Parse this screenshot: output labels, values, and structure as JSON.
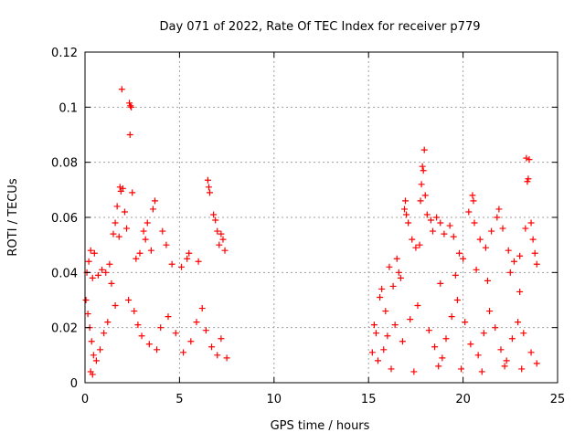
{
  "chart_data": {
    "type": "scatter",
    "title": "Day 071 of 2022, Rate Of TEC Index for receiver p779",
    "xlabel": "GPS time / hours",
    "ylabel": "ROTI / TECUs",
    "xlim": [
      0,
      25
    ],
    "ylim": [
      0,
      0.12
    ],
    "xticks": [
      0,
      5,
      10,
      15,
      20,
      25
    ],
    "xtick_labels": [
      "0",
      "5",
      "10",
      "15",
      "20",
      "25"
    ],
    "yticks": [
      0,
      0.02,
      0.04,
      0.06,
      0.08,
      0.1,
      0.12
    ],
    "ytick_labels": [
      "0",
      "0.02",
      "0.04",
      "0.06",
      "0.08",
      "0.1",
      "0.12"
    ],
    "grid": true,
    "marker": "+",
    "series_color": "#ff0000",
    "series": [
      {
        "name": "ROTI",
        "points": [
          [
            1.95,
            0.1065
          ],
          [
            2.35,
            0.1015
          ],
          [
            2.4,
            0.1005
          ],
          [
            2.45,
            0.1
          ],
          [
            2.38,
            0.09
          ],
          [
            1.85,
            0.071
          ],
          [
            2.0,
            0.0705
          ],
          [
            1.9,
            0.0695
          ],
          [
            2.5,
            0.069
          ],
          [
            1.7,
            0.064
          ],
          [
            2.1,
            0.062
          ],
          [
            1.6,
            0.058
          ],
          [
            2.2,
            0.056
          ],
          [
            1.5,
            0.054
          ],
          [
            1.8,
            0.053
          ],
          [
            3.7,
            0.066
          ],
          [
            3.6,
            0.063
          ],
          [
            3.3,
            0.058
          ],
          [
            3.1,
            0.055
          ],
          [
            3.2,
            0.052
          ],
          [
            4.1,
            0.055
          ],
          [
            4.3,
            0.05
          ],
          [
            3.5,
            0.048
          ],
          [
            2.9,
            0.047
          ],
          [
            2.7,
            0.045
          ],
          [
            6.5,
            0.0735
          ],
          [
            6.55,
            0.071
          ],
          [
            6.6,
            0.069
          ],
          [
            6.8,
            0.061
          ],
          [
            6.9,
            0.059
          ],
          [
            7.0,
            0.055
          ],
          [
            7.2,
            0.054
          ],
          [
            7.3,
            0.052
          ],
          [
            7.1,
            0.05
          ],
          [
            7.4,
            0.048
          ],
          [
            5.5,
            0.047
          ],
          [
            5.4,
            0.045
          ],
          [
            6.0,
            0.044
          ],
          [
            4.6,
            0.043
          ],
          [
            5.1,
            0.042
          ],
          [
            0.3,
            0.048
          ],
          [
            0.5,
            0.047
          ],
          [
            0.2,
            0.044
          ],
          [
            0.1,
            0.04
          ],
          [
            0.4,
            0.038
          ],
          [
            0.7,
            0.039
          ],
          [
            0.9,
            0.041
          ],
          [
            1.1,
            0.04
          ],
          [
            1.3,
            0.043
          ],
          [
            1.4,
            0.036
          ],
          [
            0.05,
            0.03
          ],
          [
            0.15,
            0.025
          ],
          [
            0.25,
            0.02
          ],
          [
            0.35,
            0.015
          ],
          [
            0.45,
            0.01
          ],
          [
            0.6,
            0.008
          ],
          [
            0.8,
            0.012
          ],
          [
            1.0,
            0.018
          ],
          [
            1.2,
            0.022
          ],
          [
            1.6,
            0.028
          ],
          [
            2.3,
            0.03
          ],
          [
            2.6,
            0.026
          ],
          [
            2.8,
            0.021
          ],
          [
            3.0,
            0.017
          ],
          [
            3.4,
            0.014
          ],
          [
            3.8,
            0.012
          ],
          [
            4.0,
            0.02
          ],
          [
            4.4,
            0.024
          ],
          [
            4.8,
            0.018
          ],
          [
            5.2,
            0.011
          ],
          [
            5.6,
            0.015
          ],
          [
            5.9,
            0.022
          ],
          [
            6.2,
            0.027
          ],
          [
            6.4,
            0.019
          ],
          [
            6.7,
            0.013
          ],
          [
            7.0,
            0.01
          ],
          [
            7.2,
            0.016
          ],
          [
            7.5,
            0.009
          ],
          [
            0.3,
            0.004
          ],
          [
            0.4,
            0.003
          ],
          [
            15.3,
            0.021
          ],
          [
            15.4,
            0.018
          ],
          [
            15.6,
            0.031
          ],
          [
            15.9,
            0.026
          ],
          [
            16.1,
            0.042
          ],
          [
            16.3,
            0.035
          ],
          [
            16.5,
            0.045
          ],
          [
            16.6,
            0.04
          ],
          [
            16.9,
            0.063
          ],
          [
            17.0,
            0.061
          ],
          [
            16.95,
            0.066
          ],
          [
            17.1,
            0.058
          ],
          [
            17.3,
            0.052
          ],
          [
            17.5,
            0.049
          ],
          [
            17.7,
            0.05
          ],
          [
            17.85,
            0.0785
          ],
          [
            17.9,
            0.077
          ],
          [
            17.95,
            0.0845
          ],
          [
            17.8,
            0.072
          ],
          [
            18.0,
            0.068
          ],
          [
            17.75,
            0.066
          ],
          [
            18.1,
            0.061
          ],
          [
            18.3,
            0.059
          ],
          [
            18.4,
            0.055
          ],
          [
            18.6,
            0.06
          ],
          [
            18.8,
            0.058
          ],
          [
            19.0,
            0.054
          ],
          [
            19.3,
            0.057
          ],
          [
            19.5,
            0.053
          ],
          [
            19.8,
            0.047
          ],
          [
            20.0,
            0.045
          ],
          [
            20.3,
            0.062
          ],
          [
            20.5,
            0.068
          ],
          [
            20.55,
            0.066
          ],
          [
            20.6,
            0.058
          ],
          [
            20.9,
            0.052
          ],
          [
            21.2,
            0.049
          ],
          [
            21.5,
            0.055
          ],
          [
            21.8,
            0.06
          ],
          [
            21.9,
            0.063
          ],
          [
            22.1,
            0.056
          ],
          [
            22.4,
            0.048
          ],
          [
            22.7,
            0.044
          ],
          [
            23.0,
            0.046
          ],
          [
            23.3,
            0.056
          ],
          [
            23.35,
            0.0815
          ],
          [
            23.5,
            0.081
          ],
          [
            23.45,
            0.074
          ],
          [
            23.4,
            0.073
          ],
          [
            23.6,
            0.058
          ],
          [
            23.7,
            0.052
          ],
          [
            23.8,
            0.047
          ],
          [
            23.9,
            0.043
          ],
          [
            15.2,
            0.011
          ],
          [
            15.5,
            0.008
          ],
          [
            15.8,
            0.012
          ],
          [
            16.0,
            0.017
          ],
          [
            16.4,
            0.021
          ],
          [
            16.8,
            0.015
          ],
          [
            17.2,
            0.023
          ],
          [
            17.6,
            0.028
          ],
          [
            18.2,
            0.019
          ],
          [
            18.5,
            0.013
          ],
          [
            18.9,
            0.009
          ],
          [
            19.1,
            0.016
          ],
          [
            19.4,
            0.024
          ],
          [
            19.7,
            0.03
          ],
          [
            20.1,
            0.022
          ],
          [
            20.4,
            0.014
          ],
          [
            20.8,
            0.01
          ],
          [
            21.1,
            0.018
          ],
          [
            21.4,
            0.026
          ],
          [
            21.7,
            0.02
          ],
          [
            22.0,
            0.012
          ],
          [
            22.3,
            0.008
          ],
          [
            22.6,
            0.016
          ],
          [
            22.9,
            0.022
          ],
          [
            23.2,
            0.018
          ],
          [
            23.6,
            0.011
          ],
          [
            23.9,
            0.007
          ],
          [
            16.2,
            0.005
          ],
          [
            17.4,
            0.004
          ],
          [
            18.7,
            0.006
          ],
          [
            19.9,
            0.005
          ],
          [
            21.0,
            0.004
          ],
          [
            22.2,
            0.006
          ],
          [
            23.1,
            0.005
          ],
          [
            15.7,
            0.034
          ],
          [
            16.7,
            0.038
          ],
          [
            18.8,
            0.036
          ],
          [
            19.6,
            0.039
          ],
          [
            20.7,
            0.041
          ],
          [
            21.3,
            0.037
          ],
          [
            22.5,
            0.04
          ],
          [
            23.0,
            0.033
          ]
        ]
      }
    ]
  }
}
